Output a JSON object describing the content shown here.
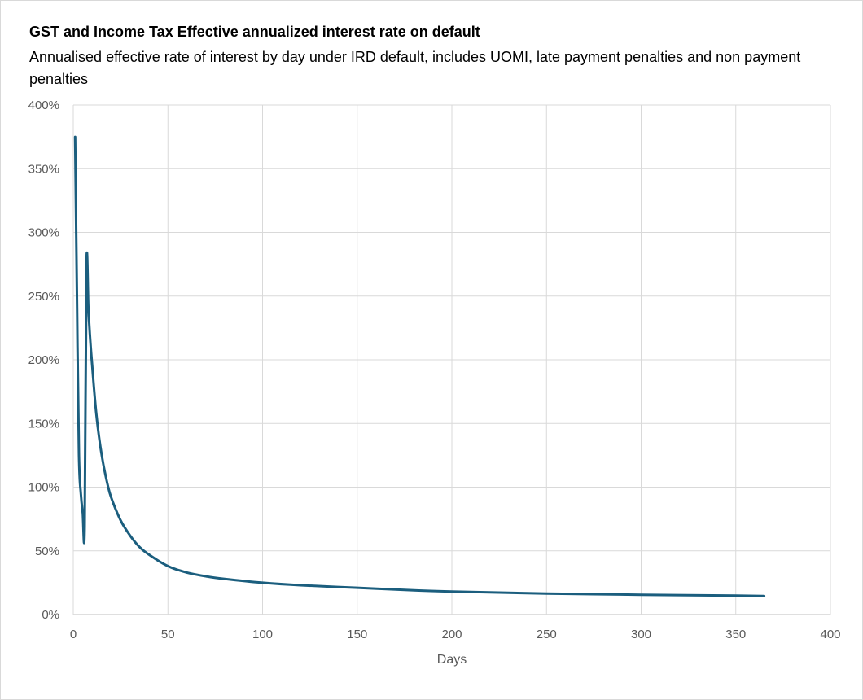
{
  "chart_data": {
    "type": "line",
    "title": "GST and Income Tax Effective annualized interest rate on default",
    "subtitle": "Annualised effective rate of interest by day under IRD default, includes UOMI, late payment penalties and non payment penalties",
    "xlabel": "Days",
    "ylabel": "",
    "xlim": [
      0,
      400
    ],
    "ylim": [
      0,
      4.0
    ],
    "x_ticks": [
      "0",
      "50",
      "100",
      "150",
      "200",
      "250",
      "300",
      "350",
      "400"
    ],
    "y_ticks": [
      "0%",
      "50%",
      "100%",
      "150%",
      "200%",
      "250%",
      "300%",
      "350%",
      "400%"
    ],
    "grid": true,
    "legend": "none",
    "color": "#1b5e7e",
    "series": [
      {
        "x": [
          1,
          2,
          3,
          4,
          5,
          6,
          7,
          8,
          9,
          10,
          12,
          14,
          16,
          18,
          20,
          25,
          30,
          35,
          40,
          50,
          60,
          70,
          80,
          100,
          120,
          150,
          180,
          200,
          250,
          300,
          350,
          365
        ],
        "values": [
          3.75,
          2.4,
          1.25,
          0.95,
          0.8,
          0.69,
          2.76,
          2.4,
          2.15,
          1.95,
          1.6,
          1.35,
          1.17,
          1.03,
          0.92,
          0.74,
          0.62,
          0.53,
          0.47,
          0.38,
          0.33,
          0.3,
          0.28,
          0.25,
          0.23,
          0.21,
          0.19,
          0.18,
          0.165,
          0.155,
          0.148,
          0.145
        ]
      }
    ]
  }
}
